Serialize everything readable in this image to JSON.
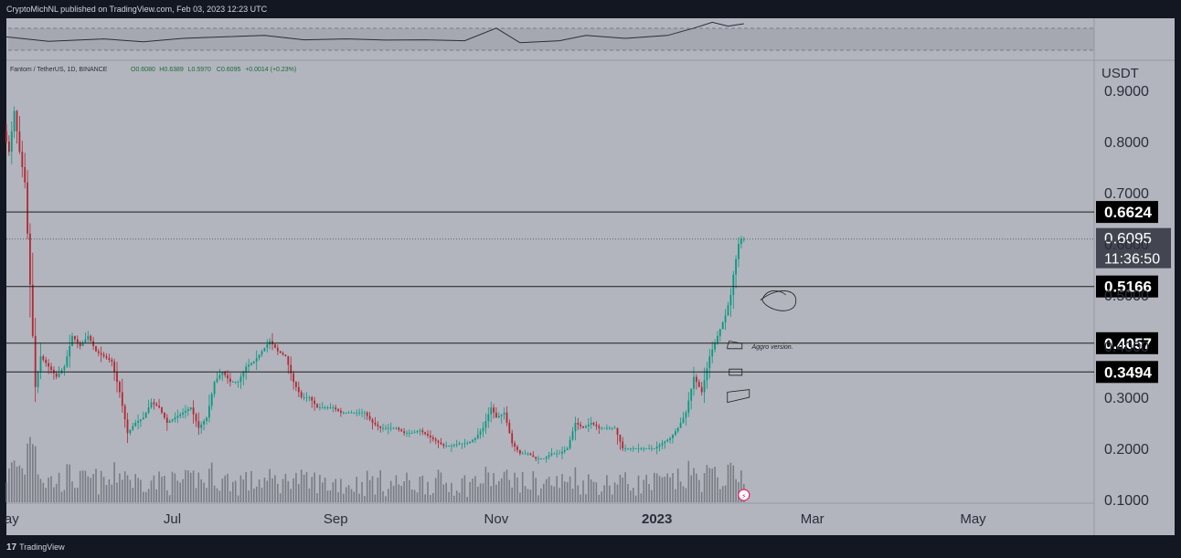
{
  "header": {
    "attribution": "CryptoMichNL published on TradingView.com, Feb 03, 2023 12:23 UTC"
  },
  "legend": {
    "symbol": "Fantom / TetherUS, 1D, BINANCE",
    "open": "O0.6080",
    "high": "H0.6389",
    "low": "L0.5970",
    "close": "C0.6095",
    "change": "+0.0014 (+0.23%)"
  },
  "footer": {
    "brand": "TradingView",
    "logo": "17"
  },
  "colors": {
    "bg": "#131722",
    "pane": "#b2b5be",
    "up": "#089981",
    "down": "#b22833",
    "volume": "#6b6e76",
    "text": "#ffffff",
    "label_bg": "#000000",
    "last_label_bg": "#434651",
    "grid_dash": "#7a7d85"
  },
  "chart_data": {
    "type": "candlestick",
    "title": "Fantom / TetherUS, 1D, BINANCE",
    "ylabel": "USDT",
    "ylim": [
      0.1,
      0.9
    ],
    "y_ticks": [
      "0.1000",
      "0.2000",
      "0.3000",
      "0.4000",
      "0.5000",
      "0.6000",
      "0.7000",
      "0.8000",
      "0.9000"
    ],
    "x_ticks": [
      "ay",
      "Jul",
      "Sep",
      "Nov",
      "2023",
      "Mar",
      "May"
    ],
    "x_tick_dates": [
      "2022-05-01",
      "2022-07-01",
      "2022-09-01",
      "2022-11-01",
      "2023-01-01",
      "2023-03-01",
      "2023-05-01"
    ],
    "x_range": [
      "2022-04-29",
      "2023-06-16"
    ],
    "price_path": [
      [
        "2022-04-29",
        0.82
      ],
      [
        "2022-05-01",
        0.78
      ],
      [
        "2022-05-03",
        0.86
      ],
      [
        "2022-05-05",
        0.78
      ],
      [
        "2022-05-07",
        0.72
      ],
      [
        "2022-05-09",
        0.52
      ],
      [
        "2022-05-11",
        0.32
      ],
      [
        "2022-05-13",
        0.38
      ],
      [
        "2022-05-16",
        0.36
      ],
      [
        "2022-05-19",
        0.34
      ],
      [
        "2022-05-22",
        0.36
      ],
      [
        "2022-05-25",
        0.42
      ],
      [
        "2022-05-28",
        0.4
      ],
      [
        "2022-05-31",
        0.42
      ],
      [
        "2022-06-03",
        0.39
      ],
      [
        "2022-06-06",
        0.38
      ],
      [
        "2022-06-09",
        0.37
      ],
      [
        "2022-06-12",
        0.31
      ],
      [
        "2022-06-15",
        0.23
      ],
      [
        "2022-06-18",
        0.25
      ],
      [
        "2022-06-21",
        0.26
      ],
      [
        "2022-06-24",
        0.29
      ],
      [
        "2022-06-27",
        0.28
      ],
      [
        "2022-06-30",
        0.25
      ],
      [
        "2022-07-03",
        0.26
      ],
      [
        "2022-07-06",
        0.27
      ],
      [
        "2022-07-09",
        0.28
      ],
      [
        "2022-07-12",
        0.24
      ],
      [
        "2022-07-15",
        0.26
      ],
      [
        "2022-07-18",
        0.33
      ],
      [
        "2022-07-21",
        0.35
      ],
      [
        "2022-07-24",
        0.33
      ],
      [
        "2022-07-27",
        0.33
      ],
      [
        "2022-07-30",
        0.36
      ],
      [
        "2022-08-02",
        0.37
      ],
      [
        "2022-08-05",
        0.39
      ],
      [
        "2022-08-08",
        0.41
      ],
      [
        "2022-08-11",
        0.39
      ],
      [
        "2022-08-14",
        0.38
      ],
      [
        "2022-08-17",
        0.33
      ],
      [
        "2022-08-20",
        0.3
      ],
      [
        "2022-08-23",
        0.3
      ],
      [
        "2022-08-26",
        0.28
      ],
      [
        "2022-08-29",
        0.28
      ],
      [
        "2022-09-01",
        0.28
      ],
      [
        "2022-09-04",
        0.27
      ],
      [
        "2022-09-07",
        0.27
      ],
      [
        "2022-09-10",
        0.27
      ],
      [
        "2022-09-13",
        0.27
      ],
      [
        "2022-09-16",
        0.25
      ],
      [
        "2022-09-19",
        0.24
      ],
      [
        "2022-09-22",
        0.24
      ],
      [
        "2022-09-25",
        0.24
      ],
      [
        "2022-09-28",
        0.23
      ],
      [
        "2022-10-01",
        0.23
      ],
      [
        "2022-10-04",
        0.235
      ],
      [
        "2022-10-07",
        0.225
      ],
      [
        "2022-10-10",
        0.215
      ],
      [
        "2022-10-13",
        0.205
      ],
      [
        "2022-10-16",
        0.205
      ],
      [
        "2022-10-19",
        0.21
      ],
      [
        "2022-10-22",
        0.21
      ],
      [
        "2022-10-25",
        0.22
      ],
      [
        "2022-10-28",
        0.24
      ],
      [
        "2022-10-31",
        0.28
      ],
      [
        "2022-11-02",
        0.26
      ],
      [
        "2022-11-05",
        0.27
      ],
      [
        "2022-11-08",
        0.21
      ],
      [
        "2022-11-11",
        0.19
      ],
      [
        "2022-11-14",
        0.19
      ],
      [
        "2022-11-17",
        0.18
      ],
      [
        "2022-11-20",
        0.18
      ],
      [
        "2022-11-23",
        0.19
      ],
      [
        "2022-11-26",
        0.19
      ],
      [
        "2022-11-29",
        0.2
      ],
      [
        "2022-12-02",
        0.25
      ],
      [
        "2022-12-05",
        0.24
      ],
      [
        "2022-12-08",
        0.25
      ],
      [
        "2022-12-11",
        0.24
      ],
      [
        "2022-12-14",
        0.24
      ],
      [
        "2022-12-17",
        0.24
      ],
      [
        "2022-12-20",
        0.2
      ],
      [
        "2022-12-23",
        0.2
      ],
      [
        "2022-12-26",
        0.2
      ],
      [
        "2022-12-29",
        0.2
      ],
      [
        "2023-01-01",
        0.2
      ],
      [
        "2023-01-04",
        0.21
      ],
      [
        "2023-01-07",
        0.22
      ],
      [
        "2023-01-10",
        0.24
      ],
      [
        "2023-01-13",
        0.27
      ],
      [
        "2023-01-16",
        0.34
      ],
      [
        "2023-01-19",
        0.31
      ],
      [
        "2023-01-22",
        0.38
      ],
      [
        "2023-01-25",
        0.42
      ],
      [
        "2023-01-28",
        0.46
      ],
      [
        "2023-01-30",
        0.5
      ],
      [
        "2023-01-31",
        0.54
      ],
      [
        "2023-02-01",
        0.57
      ],
      [
        "2023-02-02",
        0.6
      ],
      [
        "2023-02-03",
        0.6095
      ]
    ],
    "osc_path": [
      [
        "2022-04-29",
        0.55
      ],
      [
        "2022-05-15",
        0.4
      ],
      [
        "2022-06-05",
        0.48
      ],
      [
        "2022-06-20",
        0.38
      ],
      [
        "2022-07-05",
        0.5
      ],
      [
        "2022-07-20",
        0.55
      ],
      [
        "2022-08-05",
        0.6
      ],
      [
        "2022-08-20",
        0.45
      ],
      [
        "2022-09-05",
        0.48
      ],
      [
        "2022-09-20",
        0.44
      ],
      [
        "2022-10-05",
        0.45
      ],
      [
        "2022-10-20",
        0.42
      ],
      [
        "2022-11-01",
        0.85
      ],
      [
        "2022-11-10",
        0.35
      ],
      [
        "2022-11-25",
        0.42
      ],
      [
        "2022-12-05",
        0.6
      ],
      [
        "2022-12-20",
        0.5
      ],
      [
        "2023-01-05",
        0.6
      ],
      [
        "2023-01-15",
        0.85
      ],
      [
        "2023-01-22",
        1.05
      ],
      [
        "2023-01-28",
        0.92
      ],
      [
        "2023-02-03",
        1.0
      ]
    ],
    "levels": [
      {
        "label": "0.6624",
        "value": 0.6624
      },
      {
        "label": "0.5166",
        "value": 0.5166
      },
      {
        "label": "0.4057",
        "value": 0.4057
      },
      {
        "label": "0.3494",
        "value": 0.3494
      }
    ],
    "last_price": {
      "value": 0.6095,
      "label": "0.6095",
      "countdown": "11:36:50"
    },
    "annotations": [
      {
        "text": "Aggro version.",
        "date": "2023-02-05",
        "value": 0.4
      }
    ],
    "marker": {
      "glyph": "⚡",
      "date": "2023-02-03"
    }
  }
}
